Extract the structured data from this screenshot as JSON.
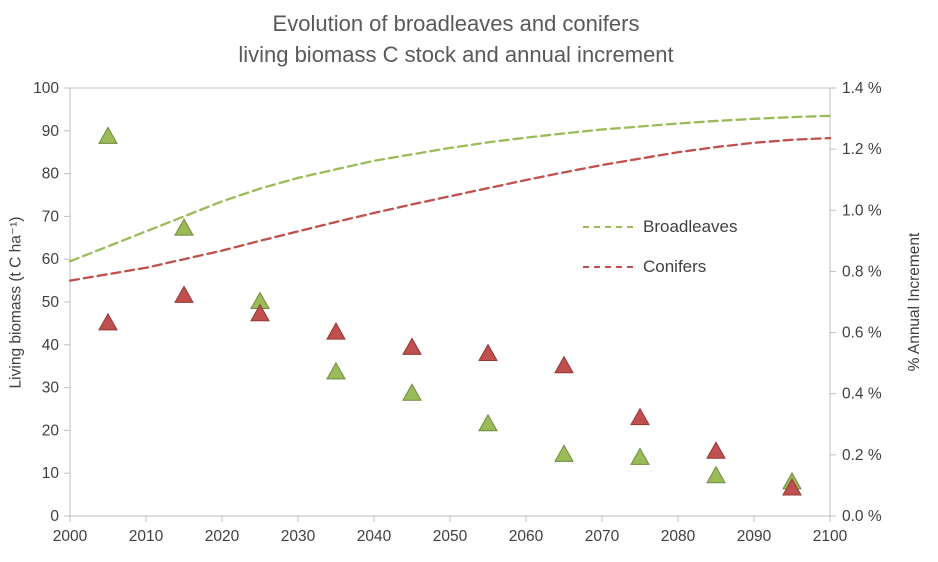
{
  "chart_data": {
    "type": "line+scatter",
    "title_lines": [
      "Evolution of broadleaves and conifers",
      "living biomass C stock and annual increment"
    ],
    "grid": false,
    "legend": {
      "position": "center-right",
      "entries": [
        {
          "label": "Broadleaves",
          "series": 0
        },
        {
          "label": "Conifers",
          "series": 1
        }
      ]
    },
    "x_axis": {
      "label": "",
      "range": [
        2000,
        2100
      ],
      "ticks": [
        2000,
        2010,
        2020,
        2030,
        2040,
        2050,
        2060,
        2070,
        2080,
        2090,
        2100
      ]
    },
    "y_left": {
      "label": "Living biomass (t C ha⁻¹)",
      "range": [
        0,
        100
      ],
      "tick_values": [
        0,
        10,
        20,
        30,
        40,
        50,
        60,
        70,
        80,
        90,
        100
      ],
      "tick_labels": [
        "0",
        "10",
        "20",
        "30",
        "40",
        "50",
        "60",
        "70",
        "80",
        "90",
        "100"
      ]
    },
    "y_right": {
      "label": "% Annual Increment",
      "range": [
        0,
        1.4
      ],
      "tick_values": [
        0,
        0.2,
        0.4,
        0.6,
        0.8,
        1.0,
        1.2,
        1.4
      ],
      "tick_labels": [
        "0.0 %",
        "0.2 %",
        "0.4 %",
        "0.6 %",
        "0.8 %",
        "1.0 %",
        "1.2 %",
        "1.4 %"
      ]
    },
    "series": [
      {
        "name": "Broadleaves",
        "type": "line",
        "style": "dashed",
        "axis": "left",
        "color": "#9BBB59",
        "x": [
          2000,
          2005,
          2010,
          2015,
          2020,
          2025,
          2030,
          2035,
          2040,
          2045,
          2050,
          2055,
          2060,
          2065,
          2070,
          2075,
          2080,
          2085,
          2090,
          2095,
          2100
        ],
        "y": [
          59.5,
          63,
          66.5,
          70,
          73.5,
          76.5,
          79,
          81,
          83,
          84.5,
          86,
          87.3,
          88.4,
          89.4,
          90.3,
          91,
          91.7,
          92.3,
          92.8,
          93.2,
          93.5
        ]
      },
      {
        "name": "Conifers",
        "type": "line",
        "style": "dashed",
        "axis": "left",
        "color": "#C0504D",
        "x": [
          2000,
          2005,
          2010,
          2015,
          2020,
          2025,
          2030,
          2035,
          2040,
          2045,
          2050,
          2055,
          2060,
          2065,
          2070,
          2075,
          2080,
          2085,
          2090,
          2095,
          2100
        ],
        "y": [
          55,
          56.5,
          58,
          60,
          62,
          64.3,
          66.5,
          68.7,
          70.8,
          72.8,
          74.7,
          76.6,
          78.5,
          80.3,
          82,
          83.5,
          85,
          86.2,
          87.2,
          87.9,
          88.3
        ]
      },
      {
        "name": "Broadleaves annual increment",
        "type": "scatter",
        "marker": "triangle",
        "axis": "right",
        "color": "#9BBB59",
        "edge": "#71893F",
        "x": [
          2005,
          2015,
          2025,
          2035,
          2045,
          2055,
          2065,
          2075,
          2085,
          2095
        ],
        "y": [
          1.24,
          0.94,
          0.7,
          0.47,
          0.4,
          0.3,
          0.2,
          0.19,
          0.13,
          0.11
        ]
      },
      {
        "name": "Conifers annual increment",
        "type": "scatter",
        "marker": "triangle",
        "axis": "right",
        "color": "#C0504D",
        "edge": "#943634",
        "x": [
          2005,
          2015,
          2025,
          2035,
          2045,
          2055,
          2065,
          2075,
          2085,
          2095
        ],
        "y": [
          0.63,
          0.72,
          0.66,
          0.6,
          0.55,
          0.53,
          0.49,
          0.32,
          0.21,
          0.09
        ]
      }
    ]
  }
}
